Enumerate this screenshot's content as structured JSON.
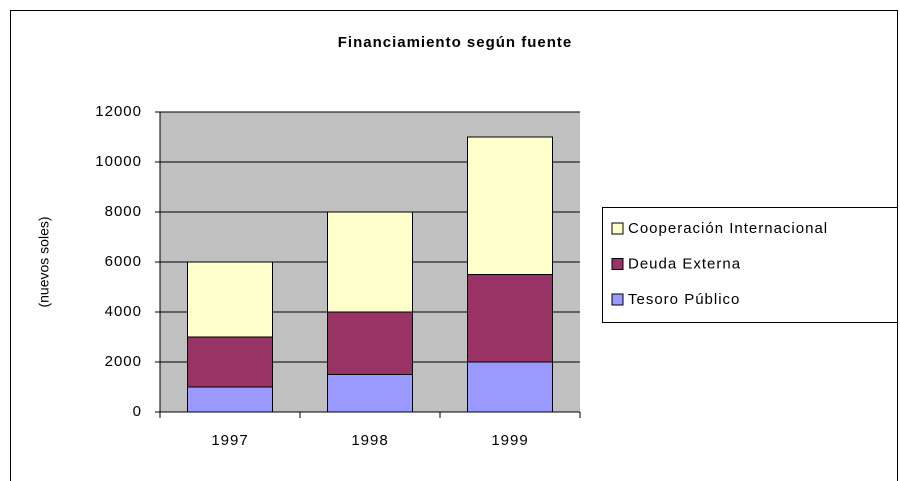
{
  "chart_data": {
    "type": "stacked_bar",
    "title": "Financiamiento según fuente",
    "y_label": "(nuevos soles)",
    "categories": [
      "1997",
      "1998",
      "1999"
    ],
    "series": [
      {
        "name": "Tesoro Público",
        "color": "#9999ff",
        "values": [
          1000,
          1500,
          2000
        ]
      },
      {
        "name": "Deuda Externa",
        "color": "#993366",
        "values": [
          2000,
          2500,
          3500
        ]
      },
      {
        "name": "Cooperación Internacional",
        "color": "#ffffcc",
        "values": [
          3000,
          4000,
          5500
        ]
      }
    ],
    "ylim": [
      0,
      12000
    ],
    "yticks": [
      0,
      2000,
      4000,
      6000,
      8000,
      10000,
      12000
    ],
    "grid": true,
    "legend": "right"
  }
}
